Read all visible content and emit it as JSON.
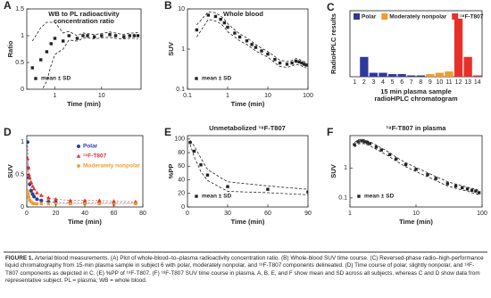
{
  "chart_data": [
    {
      "type": "line",
      "label": "A",
      "title": [
        "WB to PL radioactivity",
        "concentration ratio"
      ],
      "xlabel": "Time (min)",
      "ylabel": "Ratio",
      "xlog": true,
      "xlim": [
        0.25,
        70
      ],
      "xticks": [
        1,
        10
      ],
      "ylim": [
        0,
        1.5
      ],
      "yticks": [
        0,
        0.5,
        1,
        1.5
      ],
      "x": [
        0.33,
        0.5,
        0.67,
        0.83,
        1,
        1.5,
        2,
        3,
        4,
        5,
        7,
        10,
        15,
        20,
        30,
        40,
        50,
        60
      ],
      "series": [
        {
          "name": "mean ± SD",
          "color": "#222222",
          "marker": "square",
          "values": [
            0.4,
            0.55,
            0.7,
            0.85,
            0.95,
            0.9,
            1.0,
            0.95,
            1.0,
            1.0,
            0.98,
            1.0,
            1.02,
            1.0,
            0.98,
            1.0,
            1.0,
            1.0
          ],
          "sd": [
            0.5,
            0.6,
            0.55,
            0.4,
            0.3,
            0.15,
            0.08,
            0.05,
            0.05,
            0.04,
            0.04,
            0.04,
            0.05,
            0.05,
            0.04,
            0.05,
            0.05,
            0.06
          ]
        }
      ]
    },
    {
      "type": "line",
      "label": "B",
      "title": [
        "Whole blood"
      ],
      "xlabel": "Time (min)",
      "ylabel": "SUV",
      "xlog": true,
      "ylog": true,
      "xlim": [
        0.1,
        100
      ],
      "xticks": [
        0.1,
        1,
        10,
        100
      ],
      "ylim": [
        0.1,
        10
      ],
      "yticks": [
        0.1,
        1,
        10
      ],
      "x": [
        0.17,
        0.33,
        0.5,
        0.67,
        0.83,
        1,
        1.5,
        2,
        3,
        4,
        5,
        7,
        10,
        15,
        20,
        30,
        40,
        50,
        60,
        70,
        80,
        90
      ],
      "series": [
        {
          "name": "mean ± SD",
          "color": "#222222",
          "marker": "square",
          "values": [
            3,
            7,
            6.5,
            5.5,
            4.5,
            3.5,
            2.5,
            2,
            1.6,
            1.3,
            1.1,
            0.9,
            0.75,
            0.55,
            0.45,
            0.42,
            0.45,
            0.5,
            0.48,
            0.45,
            0.42,
            0.4
          ],
          "sd": [
            1,
            1.5,
            1.5,
            1.2,
            1,
            0.8,
            0.5,
            0.4,
            0.3,
            0.25,
            0.2,
            0.15,
            0.12,
            0.1,
            0.08,
            0.07,
            0.07,
            0.08,
            0.08,
            0.07,
            0.07,
            0.06
          ]
        }
      ]
    },
    {
      "type": "bar",
      "label": "C",
      "xlabel": [
        "15 min plasma sample",
        "radioHPLC chromatogram"
      ],
      "ylabel": "RadioHPLC results",
      "ylim": [
        0,
        50
      ],
      "categories": [
        "1",
        "2",
        "3",
        "4",
        "5",
        "6",
        "7",
        "8",
        "9",
        "10",
        "11",
        "12",
        "13",
        "14"
      ],
      "series": [
        {
          "name": "Polar",
          "color": "#2d3a9c",
          "values": [
            null,
            15,
            3,
            3,
            2,
            2,
            1,
            1,
            null,
            null,
            null,
            null,
            null,
            null
          ]
        },
        {
          "name": "Moderately nonpolar",
          "color": "#f29c2b",
          "values": [
            null,
            null,
            null,
            null,
            null,
            null,
            null,
            null,
            2,
            3,
            4,
            null,
            null,
            null
          ]
        },
        {
          "name": "¹⁸F-T807",
          "color": "#e8302a",
          "values": [
            null,
            null,
            null,
            null,
            null,
            null,
            null,
            null,
            null,
            null,
            null,
            44,
            15,
            1
          ]
        }
      ]
    },
    {
      "type": "line",
      "label": "D",
      "xlabel": "Time (min)",
      "ylabel": "SUV",
      "line_style": "dashed",
      "xlim": [
        0,
        80
      ],
      "xticks": [
        0,
        20,
        40,
        60,
        80
      ],
      "ylim": [
        0,
        1.1
      ],
      "yticks": [
        0,
        0.5,
        1
      ],
      "x": [
        0.5,
        1,
        1.5,
        2,
        3,
        4,
        5,
        7,
        10,
        15,
        20,
        30,
        40,
        50,
        60,
        75
      ],
      "series": [
        {
          "name": "Polar",
          "color": "#2d3a9c",
          "marker": "circle",
          "values": [
            1.0,
            0.6,
            0.45,
            0.35,
            0.25,
            0.2,
            0.16,
            0.12,
            0.1,
            0.08,
            0.07,
            0.06,
            0.06,
            0.07,
            0.06,
            0.06
          ]
        },
        {
          "name": "¹⁸F-T807",
          "color": "#e8302a",
          "marker": "triangle",
          "values": [
            0.75,
            0.6,
            0.5,
            0.45,
            0.38,
            0.32,
            0.28,
            0.22,
            0.18,
            0.14,
            0.12,
            0.1,
            0.1,
            0.1,
            0.09,
            0.08
          ]
        },
        {
          "name": "Moderately nonpolar",
          "color": "#f29c2b",
          "marker": "square",
          "values": [
            0.25,
            0.2,
            0.15,
            0.1,
            0.08,
            0.06,
            0.05,
            0.05,
            0.05,
            0.05,
            0.05,
            0.05,
            0.05,
            0.05,
            0.04,
            0.05
          ]
        }
      ]
    },
    {
      "type": "line",
      "label": "E",
      "title": [
        "Unmetabolized ¹⁸F-T807"
      ],
      "xlabel": "Time (min)",
      "ylabel": "%PP",
      "xlim": [
        0,
        90
      ],
      "xticks": [
        0,
        30,
        60,
        90
      ],
      "ylim": [
        0,
        105
      ],
      "yticks": [
        0,
        20,
        40,
        60,
        80,
        100
      ],
      "x": [
        2,
        5,
        10,
        15,
        30,
        60,
        90
      ],
      "series": [
        {
          "name": "mean ± SD",
          "color": "#222222",
          "marker": "square",
          "values": [
            95,
            82,
            62,
            47,
            30,
            26,
            22
          ],
          "sd": [
            3,
            8,
            10,
            8,
            7,
            5,
            4
          ]
        }
      ]
    },
    {
      "type": "line",
      "label": "F",
      "title": [
        "¹⁸F-T807 in plasma"
      ],
      "xlabel": "Time (min)",
      "ylabel": "SUV",
      "xlog": true,
      "ylog": true,
      "xlim": [
        1,
        100
      ],
      "xticks": [
        1,
        10,
        100
      ],
      "ylim": [
        0.05,
        12
      ],
      "yticks": [
        0.1,
        1
      ],
      "x": [
        1.17,
        1.33,
        1.5,
        1.67,
        1.83,
        2,
        2.5,
        3,
        4,
        5,
        7,
        10,
        15,
        20,
        30,
        40,
        50,
        60,
        70,
        80,
        90
      ],
      "series": [
        {
          "name": "mean ± SD",
          "color": "#222222",
          "marker": "square",
          "values": [
            6,
            7.5,
            8,
            7.5,
            7,
            6.5,
            5,
            4,
            2.8,
            2,
            1.3,
            0.9,
            0.6,
            0.45,
            0.3,
            0.25,
            0.22,
            0.2,
            0.18,
            0.17,
            0.15
          ],
          "sd": [
            1,
            1.2,
            1.3,
            1.2,
            1.1,
            1,
            0.8,
            0.6,
            0.45,
            0.3,
            0.2,
            0.14,
            0.09,
            0.07,
            0.05,
            0.04,
            0.035,
            0.03,
            0.03,
            0.03,
            0.025
          ]
        }
      ]
    }
  ],
  "caption": {
    "label": "FIGURE 1.",
    "text": "Arterial blood measurements. (A) Plot of whole-blood–to–plasma radioactivity concentration ratio. (B) Whole-blood SUV time course. (C) Reversed-phase radio–high-performance liquid chromatography from 15-min plasma sample in subject 6 with polar, moderately nonpolar, and ¹⁸F-T807 components delineated. (D) Time course of polar, slightly nonpolar, and ¹⁸F-T807 components as depicted in C. (E) %PP of ¹⁸F-T807. (F) ¹⁸F-T807 SUV time course in plasma. A, B, E, and F show mean and SD across all subjects, whereas C and D show data from representative subject. PL = plasma; WB = whole blood."
  }
}
